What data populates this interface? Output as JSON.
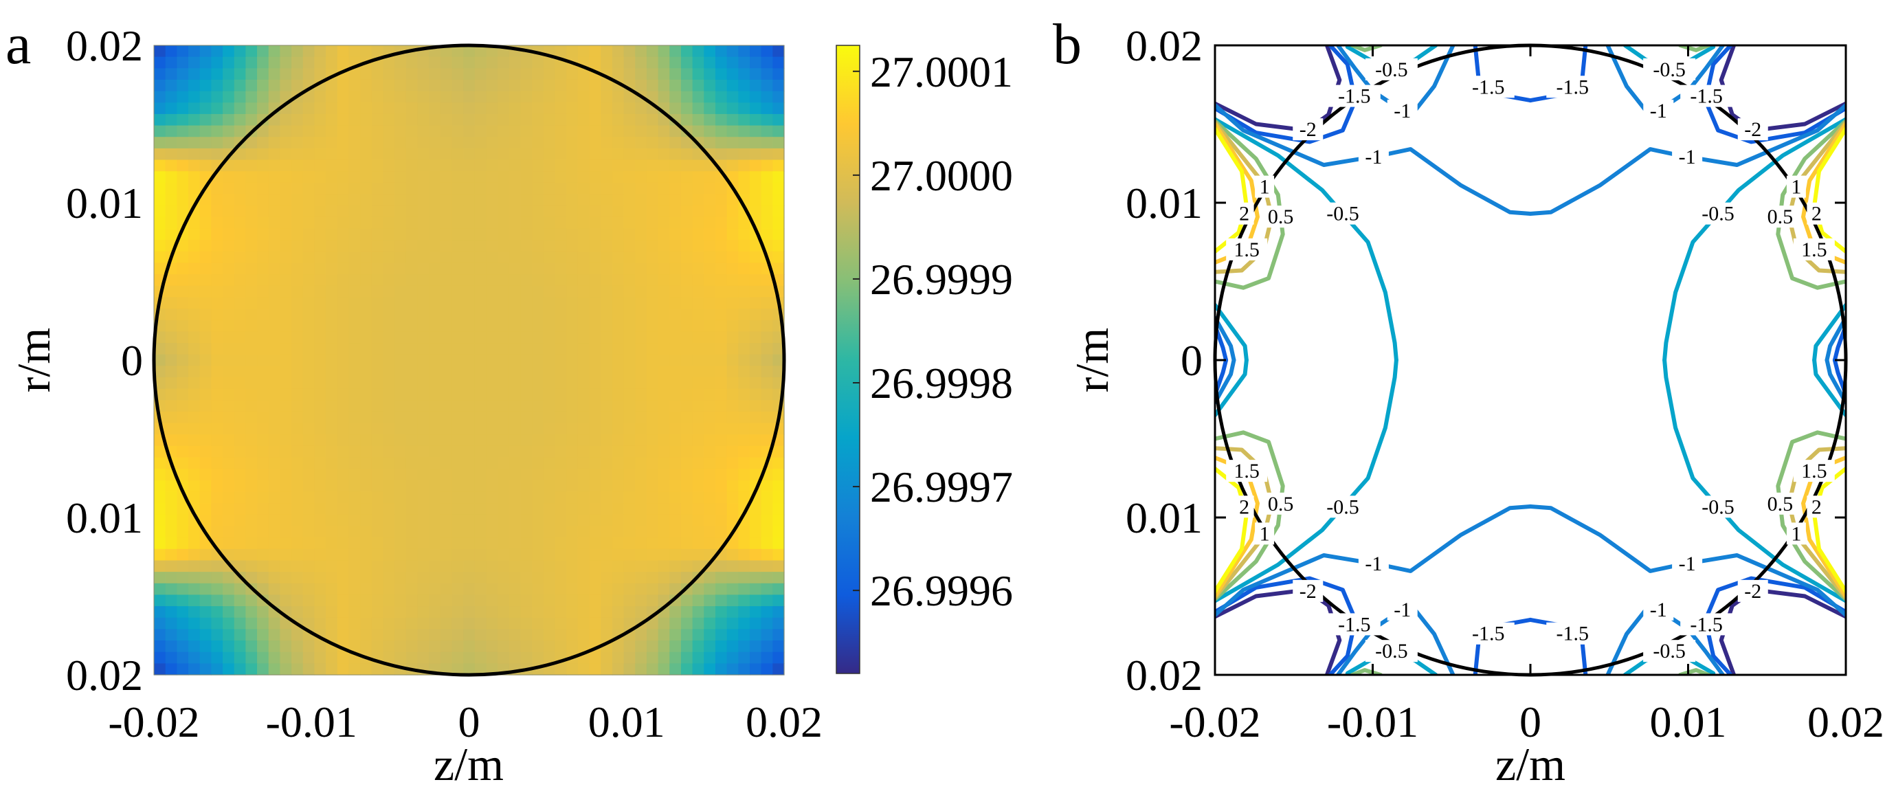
{
  "chart_data": [
    {
      "panel_label": "a",
      "type": "heatmap",
      "xlabel": "z/m",
      "ylabel": "r/m",
      "xlim": [
        -0.02,
        0.02
      ],
      "ylim": [
        -0.02,
        0.02
      ],
      "x_tick_values": [
        -0.02,
        -0.01,
        0,
        0.01,
        0.02
      ],
      "x_ticks": [
        "-0.02",
        "-0.01",
        "0",
        "0.01",
        "0.02"
      ],
      "y_tick_values": [
        0.02,
        0.01,
        0,
        -0.01,
        -0.02
      ],
      "y_ticks": [
        "0.02",
        "0.01",
        "0",
        "0.01",
        "0.02"
      ],
      "x": [
        -0.02,
        -0.016,
        -0.012,
        -0.008,
        -0.004,
        0,
        0.004,
        0.008,
        0.012,
        0.016,
        0.02
      ],
      "y": [
        0.02,
        0.016,
        0.012,
        0.008,
        0.004,
        0,
        -0.004,
        -0.008,
        -0.012,
        -0.016,
        -0.02
      ],
      "values": [
        [
          26.99955,
          26.9997,
          26.99992,
          27.00002,
          26.99998,
          26.99995,
          26.99998,
          27.00002,
          26.99992,
          26.9997,
          26.99955
        ],
        [
          26.9997,
          26.99982,
          26.99997,
          27.00002,
          27.0,
          26.99998,
          27.0,
          27.00002,
          26.99997,
          26.99982,
          26.9997
        ],
        [
          27.00011,
          27.00004,
          27.00003,
          27.00002,
          27.000005,
          27.0,
          27.000005,
          27.00002,
          27.00003,
          27.00004,
          27.00011
        ],
        [
          27.0001,
          27.00005,
          27.00003,
          27.000015,
          27.000005,
          27.0,
          27.000005,
          27.000015,
          27.00003,
          27.00005,
          27.0001
        ],
        [
          27.00003,
          27.000035,
          27.000025,
          27.00001,
          27.0,
          27.0,
          27.0,
          27.00001,
          27.000025,
          27.000035,
          27.00003
        ],
        [
          26.99996,
          27.000025,
          27.000025,
          27.00001,
          27.0,
          27.0,
          27.0,
          27.00001,
          27.000025,
          27.000025,
          26.99996
        ],
        [
          27.00003,
          27.000035,
          27.000025,
          27.00001,
          27.0,
          27.0,
          27.0,
          27.00001,
          27.000025,
          27.000035,
          27.00003
        ],
        [
          27.0001,
          27.00005,
          27.00003,
          27.000015,
          27.000005,
          27.0,
          27.000005,
          27.000015,
          27.00003,
          27.00005,
          27.0001
        ],
        [
          27.00011,
          27.00004,
          27.00003,
          27.00002,
          27.000005,
          27.0,
          27.000005,
          27.00002,
          27.00003,
          27.00004,
          27.00011
        ],
        [
          26.9997,
          26.99982,
          26.99997,
          27.00002,
          27.0,
          26.99998,
          27.0,
          27.00002,
          26.99997,
          26.99982,
          26.9997
        ],
        [
          26.99955,
          26.9997,
          26.99992,
          27.00002,
          26.99998,
          26.99995,
          26.99998,
          27.00002,
          26.99992,
          26.9997,
          26.99955
        ]
      ],
      "colormap": "parula",
      "colorbar": {
        "range": [
          26.99952,
          27.000125
        ],
        "tick_values": [
          27.0001,
          27.0,
          26.9999,
          26.9998,
          26.9997,
          26.9996
        ],
        "ticks": [
          "27.0001",
          "27.0000",
          "26.9999",
          "26.9998",
          "26.9997",
          "26.9996"
        ]
      },
      "overlay": {
        "shape": "circle",
        "center": [
          0,
          0
        ],
        "radius": 0.02,
        "color": "#000000"
      }
    },
    {
      "panel_label": "b",
      "type": "contour",
      "xlabel": "z/m",
      "ylabel": "r/m",
      "xlim": [
        -0.02,
        0.02
      ],
      "ylim": [
        -0.02,
        0.02
      ],
      "grid": false,
      "x_tick_values": [
        -0.02,
        -0.01,
        0,
        0.01,
        0.02
      ],
      "x_ticks": [
        "-0.02",
        "-0.01",
        "0",
        "0.01",
        "0.02"
      ],
      "y_tick_values": [
        0.02,
        0.01,
        0,
        -0.01,
        -0.02
      ],
      "y_ticks": [
        "0.02",
        "0.01",
        "0",
        "0.01",
        "0.02"
      ],
      "overlay": {
        "shape": "circle",
        "center": [
          0,
          0
        ],
        "radius": 0.02,
        "color": "#000000"
      },
      "contours": [
        {
          "level": -2,
          "label": "-2",
          "color": "#352a87",
          "upper_left_quadrant_paths": [
            [
              [
                -0.02,
                0.0163
              ],
              [
                -0.0174,
                0.015
              ],
              [
                -0.0142,
                0.0146
              ],
              [
                -0.0128,
                0.0156
              ],
              [
                -0.0121,
                0.0178
              ],
              [
                -0.0129,
                0.02
              ]
            ]
          ]
        },
        {
          "level": -1.5,
          "label": "-1.5",
          "color": "#0f5cdd",
          "upper_left_quadrant_paths": [
            [
              [
                -0.02,
                0.016
              ],
              [
                -0.0174,
                0.01445
              ],
              [
                -0.014,
                0.01387
              ],
              [
                -0.0119,
                0.0146
              ],
              [
                -0.0111,
                0.0165
              ],
              [
                -0.0116,
                0.0188
              ],
              [
                -0.0127,
                0.02
              ]
            ],
            [
              [
                -0.0035,
                0.02
              ],
              [
                -0.0033,
                0.018
              ],
              [
                -0.0022,
                0.0169
              ],
              [
                0,
                0.0165
              ]
            ],
            [
              [
                -0.02,
                0.0022
              ],
              [
                -0.0195,
                0.0008
              ],
              [
                -0.0193,
                0
              ]
            ]
          ]
        },
        {
          "level": -1,
          "label": "-1",
          "color": "#1481d6",
          "upper_left_quadrant_paths": [
            [
              [
                -0.02,
                0.0162
              ],
              [
                -0.0182,
                0.0146
              ],
              [
                -0.0131,
                0.0124
              ],
              [
                -0.0095,
                0.013
              ],
              [
                -0.0076,
                0.0134
              ],
              [
                -0.0044,
                0.0111
              ],
              [
                -0.0013,
                0.0094
              ],
              [
                0,
                0.0093
              ]
            ],
            [
              [
                -0.0122,
                0.02
              ],
              [
                -0.0111,
                0.0185
              ],
              [
                -0.01,
                0.0171
              ],
              [
                -0.0076,
                0.0155
              ],
              [
                -0.0061,
                0.0174
              ],
              [
                -0.0049,
                0.02
              ]
            ],
            [
              [
                -0.02,
                0.0027
              ],
              [
                -0.019,
                0.0009
              ],
              [
                -0.0188,
                0
              ]
            ]
          ]
        },
        {
          "level": -0.5,
          "label": "-0.5",
          "color": "#06a4ca",
          "upper_left_quadrant_paths": [
            [
              [
                -0.02,
                0.0153
              ],
              [
                -0.016,
                0.013
              ],
              [
                -0.0132,
                0.0108
              ],
              [
                -0.0103,
                0.0075
              ],
              [
                -0.0092,
                0.0043
              ],
              [
                -0.0086,
                0.0011
              ],
              [
                -0.0085,
                0
              ]
            ],
            [
              [
                -0.0116,
                0.0199
              ],
              [
                -0.009,
                0.0184
              ],
              [
                -0.0073,
                0.0191
              ],
              [
                -0.006,
                0.02
              ]
            ],
            [
              [
                -0.02,
                0.0035
              ],
              [
                -0.0181,
                0.0009
              ],
              [
                -0.018,
                0
              ]
            ]
          ]
        },
        {
          "level": 0.5,
          "label": "0.5",
          "color": "#87bf77",
          "upper_left_quadrant_paths": [
            [
              [
                -0.02,
                0.0152
              ],
              [
                -0.0174,
                0.0128
              ],
              [
                -0.016,
                0.0105
              ],
              [
                -0.0157,
                0.008
              ],
              [
                -0.0166,
                0.0052
              ],
              [
                -0.0182,
                0.0046
              ],
              [
                -0.02,
                0.005
              ]
            ],
            [
              [
                -0.0113,
                0.02
              ],
              [
                -0.0105,
                0.0197
              ],
              [
                -0.0095,
                0.02
              ]
            ]
          ]
        },
        {
          "level": 1,
          "label": "1",
          "color": "#d1bb59",
          "upper_left_quadrant_paths": [
            [
              [
                -0.02,
                0.0151
              ],
              [
                -0.0169,
                0.0112
              ],
              [
                -0.0164,
                0.0091
              ],
              [
                -0.0169,
                0.007
              ],
              [
                -0.0183,
                0.0057
              ],
              [
                -0.02,
                0.0056
              ]
            ]
          ]
        },
        {
          "level": 1.5,
          "label": "1.5",
          "color": "#fec832",
          "upper_left_quadrant_paths": [
            [
              [
                -0.02,
                0.015
              ],
              [
                -0.0177,
                0.0114
              ],
              [
                -0.0173,
                0.0091
              ],
              [
                -0.018,
                0.007
              ],
              [
                -0.02,
                0.0062
              ]
            ]
          ]
        },
        {
          "level": 2,
          "label": "2",
          "color": "#f9fb0e",
          "upper_left_quadrant_paths": [
            [
              [
                -0.02,
                0.0147
              ],
              [
                -0.0183,
                0.012
              ],
              [
                -0.018,
                0.0098
              ],
              [
                -0.0185,
                0.0081
              ],
              [
                -0.02,
                0.0069
              ]
            ]
          ]
        }
      ]
    }
  ]
}
